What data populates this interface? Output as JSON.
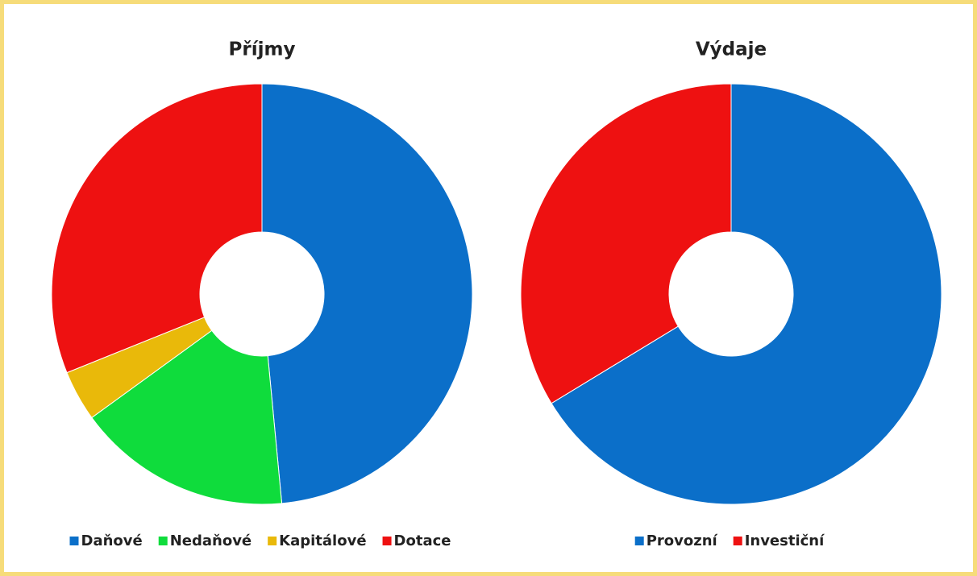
{
  "chart_data": [
    {
      "type": "donut",
      "title": "Příjmy",
      "categories": [
        "Daňové",
        "Nedaňové",
        "Kapitálové",
        "Dotace"
      ],
      "values": [
        48.5,
        16.5,
        3.9,
        31.1
      ],
      "colors": [
        "#0b6fc9",
        "#0fdc3c",
        "#e9b90a",
        "#ee1111"
      ],
      "legend": "bottom"
    },
    {
      "type": "donut",
      "title": "Výdaje",
      "categories": [
        "Provozní",
        "Investiční"
      ],
      "values": [
        66.3,
        33.7
      ],
      "colors": [
        "#0b6fc9",
        "#ee1111"
      ],
      "legend": "bottom"
    }
  ]
}
